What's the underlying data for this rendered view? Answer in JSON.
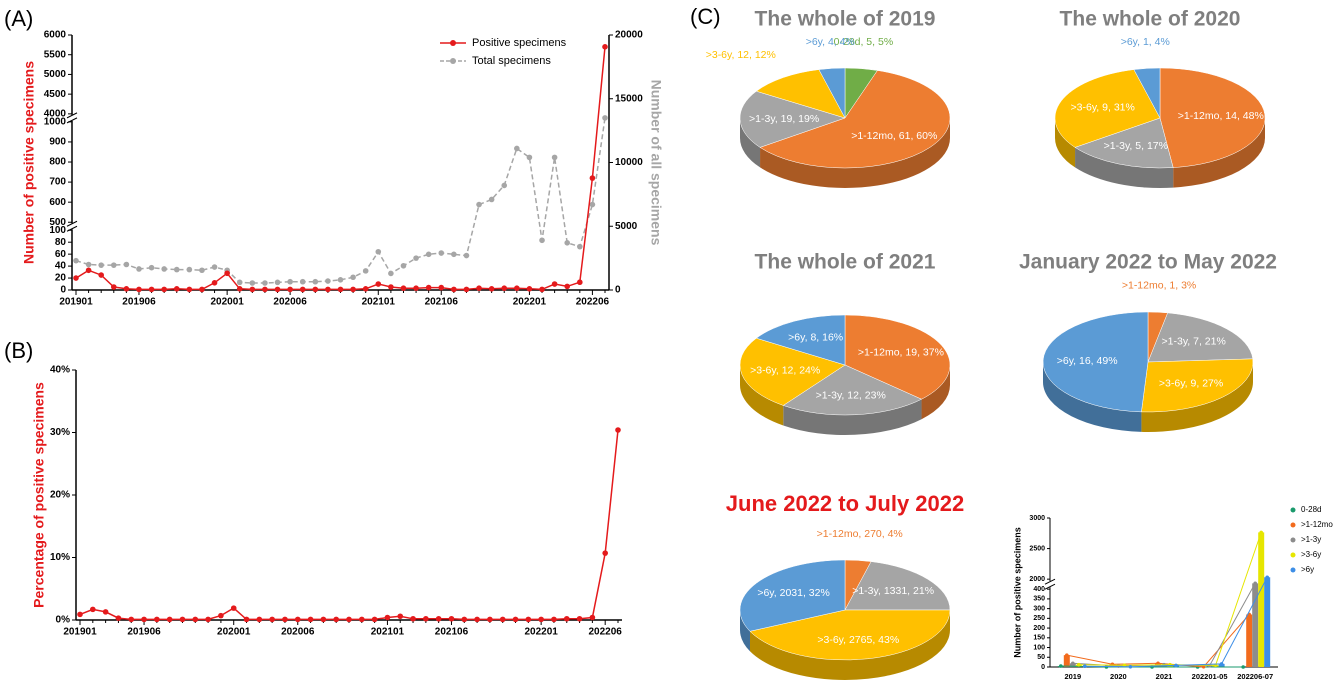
{
  "chart_data": [
    {
      "panel": "(A)",
      "type": "line",
      "categories": [
        "201901",
        null,
        null,
        null,
        null,
        "201906",
        null,
        null,
        null,
        null,
        null,
        null,
        "202001",
        null,
        null,
        null,
        null,
        "202006",
        null,
        null,
        null,
        null,
        null,
        null,
        "202101",
        null,
        null,
        null,
        null,
        "202106",
        null,
        null,
        null,
        null,
        null,
        null,
        "202201",
        null,
        null,
        null,
        null,
        "202206",
        null
      ],
      "series": [
        {
          "name": "Positive specimens",
          "color": "#e41a1c",
          "values": [
            20,
            33,
            25,
            5,
            2,
            1,
            1,
            1,
            2,
            1,
            1,
            12,
            28,
            2,
            1,
            1,
            1,
            1,
            1,
            1,
            1,
            1,
            1,
            2,
            10,
            5,
            3,
            3,
            4,
            4,
            1,
            1,
            3,
            2,
            3,
            3,
            2,
            1,
            10,
            6,
            13,
            720,
            5700
          ]
        },
        {
          "name": "Total specimens",
          "color": "#a6a6a6",
          "axis": "y2",
          "dashed": true,
          "values": [
            2300,
            2000,
            1950,
            1950,
            2000,
            1650,
            1750,
            1650,
            1600,
            1600,
            1550,
            1800,
            1550,
            600,
            550,
            550,
            600,
            650,
            650,
            650,
            700,
            800,
            1000,
            1500,
            3000,
            1300,
            1900,
            2500,
            2800,
            2900,
            2800,
            2700,
            6700,
            7100,
            8200,
            11100,
            10400,
            3900,
            10400,
            3700,
            3400,
            6700,
            13500
          ]
        }
      ],
      "ylabel": "Number of positive specimens",
      "y2label": "Number of all specimens",
      "ylim": [
        0,
        6000
      ],
      "ybreaks": [
        [
          100,
          500
        ],
        [
          1000,
          4000
        ]
      ],
      "yticks": [
        0,
        20,
        40,
        60,
        80,
        100,
        500,
        600,
        700,
        800,
        900,
        1000,
        4000,
        4500,
        5000,
        5500,
        6000
      ],
      "y2lim": [
        0,
        20000
      ],
      "y2ticks": [
        0,
        5000,
        10000,
        15000,
        20000
      ],
      "legend": "upper right"
    },
    {
      "panel": "(B)",
      "type": "line",
      "categories": [
        "201901",
        null,
        null,
        null,
        null,
        "201906",
        null,
        null,
        null,
        null,
        null,
        null,
        "202001",
        null,
        null,
        null,
        null,
        "202006",
        null,
        null,
        null,
        null,
        null,
        null,
        "202101",
        null,
        null,
        null,
        null,
        "202106",
        null,
        null,
        null,
        null,
        null,
        null,
        "202201",
        null,
        null,
        null,
        null,
        "202206",
        null
      ],
      "series": [
        {
          "name": "Percentage of positive specimens",
          "color": "#e41a1c",
          "values": [
            0.9,
            1.7,
            1.3,
            0.3,
            0.1,
            0.1,
            0.1,
            0.1,
            0.1,
            0.1,
            0.1,
            0.7,
            1.9,
            0.1,
            0.1,
            0.1,
            0.1,
            0.1,
            0.1,
            0.1,
            0.1,
            0.1,
            0.1,
            0.1,
            0.4,
            0.6,
            0.2,
            0.2,
            0.2,
            0.2,
            0.1,
            0.1,
            0.1,
            0.1,
            0.1,
            0.1,
            0.1,
            0.1,
            0.2,
            0.2,
            0.4,
            10.7,
            30.4
          ]
        }
      ],
      "ylabel": "Percentage of positive specimens",
      "ylim": [
        0,
        40
      ],
      "yticks": [
        {
          "value": 0,
          "label": "0%"
        },
        {
          "value": 10,
          "label": "10%"
        },
        {
          "value": 20,
          "label": "20%"
        },
        {
          "value": 30,
          "label": "30%"
        },
        {
          "value": 40,
          "label": "40%"
        }
      ]
    },
    {
      "panel": "(C)",
      "type": "pie",
      "title": "The whole of 2019",
      "title_color": "#7f7f7f",
      "categories": [
        "0-28d",
        ">1-12mo",
        ">1-3y",
        ">3-6y",
        ">6y"
      ],
      "values": [
        5,
        60,
        19,
        12,
        4
      ],
      "value_labels": [
        "0-28d, 5, 5%",
        ">1-12mo, 61, 60%",
        ">1-3y, 19, 19%",
        ">3-6y, 12, 12%",
        ">6y, 4, 4%"
      ],
      "colors": [
        "#70ad47",
        "#ed7d31",
        "#a5a5a5",
        "#ffc000",
        "#5b9bd5"
      ]
    },
    {
      "type": "pie",
      "title": "The  whole of 2020",
      "title_color": "#7f7f7f",
      "categories": [
        ">1-12mo",
        ">1-3y",
        ">3-6y",
        ">6y"
      ],
      "values": [
        48,
        17,
        31,
        4
      ],
      "value_labels": [
        ">1-12mo, 14, 48%",
        ">1-3y, 5, 17%",
        ">3-6y, 9, 31%",
        ">6y, 1, 4%"
      ],
      "colors": [
        "#ed7d31",
        "#a5a5a5",
        "#ffc000",
        "#5b9bd5"
      ]
    },
    {
      "type": "pie",
      "title": "The whole of 2021",
      "title_color": "#7f7f7f",
      "categories": [
        ">1-12mo",
        ">1-3y",
        ">3-6y",
        ">6y"
      ],
      "values": [
        37,
        23,
        24,
        16
      ],
      "value_labels": [
        ">1-12mo, 19, 37%",
        ">1-3y, 12, 23%",
        ">3-6y, 12, 24%",
        ">6y, 8, 16%"
      ],
      "colors": [
        "#ed7d31",
        "#a5a5a5",
        "#ffc000",
        "#5b9bd5"
      ]
    },
    {
      "type": "pie",
      "title": "January 2022 to May 2022",
      "title_color": "#7f7f7f",
      "categories": [
        ">1-12mo",
        ">1-3y",
        ">3-6y",
        ">6y"
      ],
      "values": [
        3,
        21,
        27,
        49
      ],
      "value_labels": [
        ">1-12mo, 1, 3%",
        ">1-3y, 7, 21%",
        ">3-6y, 9, 27%",
        ">6y, 16, 49%"
      ],
      "colors": [
        "#ed7d31",
        "#a5a5a5",
        "#ffc000",
        "#5b9bd5"
      ]
    },
    {
      "type": "pie",
      "title": "June 2022 to July 2022",
      "title_color": "#e41a1c",
      "categories": [
        ">1-12mo",
        ">1-3y",
        ">3-6y",
        ">6y"
      ],
      "values": [
        4,
        21,
        43,
        32
      ],
      "value_labels": [
        ">1-12mo, 270, 4%",
        ">1-3y, 1331, 21%",
        ">3-6y, 2765, 43%",
        ">6y, 2031, 32%"
      ],
      "colors": [
        "#ed7d31",
        "#a5a5a5",
        "#ffc000",
        "#5b9bd5"
      ]
    },
    {
      "type": "bar",
      "ylabel": "Number of positive specimens",
      "categories": [
        "2019",
        "2020",
        "2021",
        "202201-05",
        "202206-07"
      ],
      "series": [
        {
          "name": "0-28d",
          "color": "#1a9a6c",
          "values": [
            5,
            0,
            0,
            0,
            0
          ]
        },
        {
          "name": ">1-12mo",
          "color": "#f26b1d",
          "values": [
            61,
            14,
            19,
            1,
            270
          ]
        },
        {
          "name": ">1-3y",
          "color": "#8c8c8c",
          "values": [
            19,
            5,
            12,
            7,
            1331
          ]
        },
        {
          "name": ">3-6y",
          "color": "#e6e600",
          "values": [
            12,
            9,
            12,
            9,
            2765
          ]
        },
        {
          "name": ">6y",
          "color": "#3d8ee6",
          "values": [
            4,
            1,
            8,
            16,
            2031
          ]
        }
      ],
      "ylim": [
        0,
        3000
      ],
      "ybreaks": [
        [
          400,
          2000
        ]
      ],
      "yticks": [
        0,
        50,
        100,
        150,
        200,
        250,
        300,
        350,
        400,
        2000,
        2500,
        3000
      ],
      "legend": "right"
    }
  ]
}
